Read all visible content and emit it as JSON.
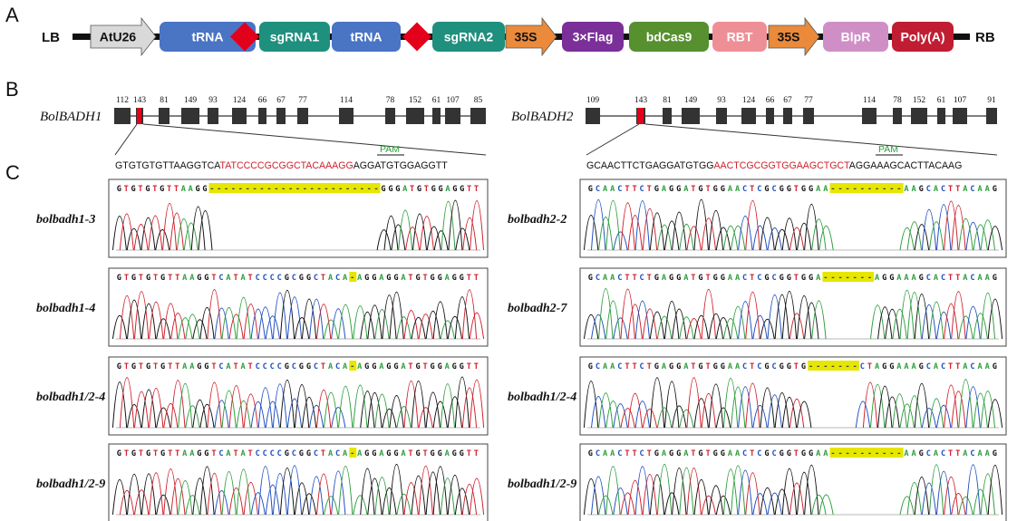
{
  "panels": {
    "a": "A",
    "b": "B",
    "c": "C"
  },
  "construct": {
    "lb": "LB",
    "rb": "RB",
    "elements": [
      {
        "label": "AtU26",
        "shape": "arrow",
        "fill": "#d9d9d9",
        "text": "#111111"
      },
      {
        "label": "tRNA",
        "shape": "box",
        "fill": "#4a74c4",
        "text": "#ffffff"
      },
      {
        "label": "",
        "shape": "diamond",
        "fill": "#e3001b",
        "text": "#ffffff"
      },
      {
        "label": "sgRNA1",
        "shape": "box",
        "fill": "#1f8f7e",
        "text": "#ffffff"
      },
      {
        "label": "tRNA",
        "shape": "box",
        "fill": "#4a74c4",
        "text": "#ffffff"
      },
      {
        "label": "",
        "shape": "diamond",
        "fill": "#e3001b",
        "text": "#ffffff"
      },
      {
        "label": "sgRNA2",
        "shape": "box",
        "fill": "#1f8f7e",
        "text": "#ffffff"
      },
      {
        "label": "35S",
        "shape": "arrow",
        "fill": "#ea8a3a",
        "text": "#111111"
      },
      {
        "label": "3×Flag",
        "shape": "box",
        "fill": "#7a2f99",
        "text": "#ffffff"
      },
      {
        "label": "bdCas9",
        "shape": "box",
        "fill": "#56902f",
        "text": "#ffffff"
      },
      {
        "label": "RBT",
        "shape": "box",
        "fill": "#ee8f96",
        "text": "#ffffff"
      },
      {
        "label": "35S",
        "shape": "arrow",
        "fill": "#ea8a3a",
        "text": "#111111"
      },
      {
        "label": "BlpR",
        "shape": "box",
        "fill": "#cf8fc6",
        "text": "#ffffff"
      },
      {
        "label": "Poly(A)",
        "shape": "box",
        "fill": "#c01d33",
        "text": "#ffffff"
      }
    ]
  },
  "genes": [
    {
      "name": "BolBADH1",
      "exon_sizes": [
        "112",
        "143",
        "81",
        "149",
        "93",
        "124",
        "66",
        "67",
        "77",
        "114",
        "78",
        "152",
        "61",
        "107",
        "85"
      ],
      "target_exon": 2,
      "seq": {
        "pre": "GTGTGTGTTAAGGTCA",
        "target": "TATCCCCGCGGCTACAAAGG",
        "post": "AGGATGTGGAGGTT"
      },
      "pam": "PAM",
      "samples": [
        {
          "name": "bolbadh1-3",
          "left": "GTGTGTGTTAAGG",
          "gap": "------------------------",
          "right": "GGGATGTGGAGGTT"
        },
        {
          "name": "bolbadh1-4",
          "left": "GTGTGTGTTAAGGTCATATCCCCGCGGCTACA",
          "gap": "-",
          "right": "AGGAGGATGTGGAGGTT"
        },
        {
          "name": "bolbadh1/2-4",
          "left": "GTGTGTGTTAAGGTCATATCCCCGCGGCTACA",
          "gap": "-",
          "right": "AGGAGGATGTGGAGGTT"
        },
        {
          "name": "bolbadh1/2-9",
          "left": "GTGTGTGTTAAGGTCATATCCCCGCGGCTACA",
          "gap": "-",
          "right": "AGGAGGATGTGGAGGTT"
        }
      ]
    },
    {
      "name": "BolBADH2",
      "exon_sizes": [
        "109",
        "143",
        "81",
        "149",
        "93",
        "124",
        "66",
        "67",
        "77",
        "114",
        "78",
        "152",
        "61",
        "107",
        "91"
      ],
      "target_exon": 2,
      "seq": {
        "pre": "GCAACTTCTGAGGATGTGG",
        "target": "AACTCGCGGTGGAAGCTGCT",
        "post": "AGGAAAGCACTTACAAG"
      },
      "pam": "PAM",
      "samples": [
        {
          "name": "bolbadh2-2",
          "left": "GCAACTTCTGAGGATGTGGAACTCGCGGTGGAA",
          "gap": "----------",
          "right": "AAGCACTTACAAG"
        },
        {
          "name": "bolbadh2-7",
          "left": "GCAACTTCTGAGGATGTGGAACTCGCGGTGGA",
          "gap": "-------",
          "right": "AGGAAAGCACTTACAAG"
        },
        {
          "name": "bolbadh1/2-4",
          "left": "GCAACTTCTGAGGATGTGGAACTCGCGGTG",
          "gap": "-------",
          "right": "CTAGGAAAGCACTTACAAG"
        },
        {
          "name": "bolbadh1/2-9",
          "left": "GCAACTTCTGAGGATGTGGAACTCGCGGTGGAA",
          "gap": "----------",
          "right": "AAGCACTTACAAG"
        }
      ]
    }
  ],
  "colors": {
    "base_A": "#2e9e3e",
    "base_C": "#1f4fbf",
    "base_G": "#111111",
    "base_T": "#d0202c",
    "target": "#d0202c",
    "pam": "#2e9e3e",
    "highlight": "#e6e600",
    "exon": "#333333",
    "target_exon": "#e3001b"
  }
}
